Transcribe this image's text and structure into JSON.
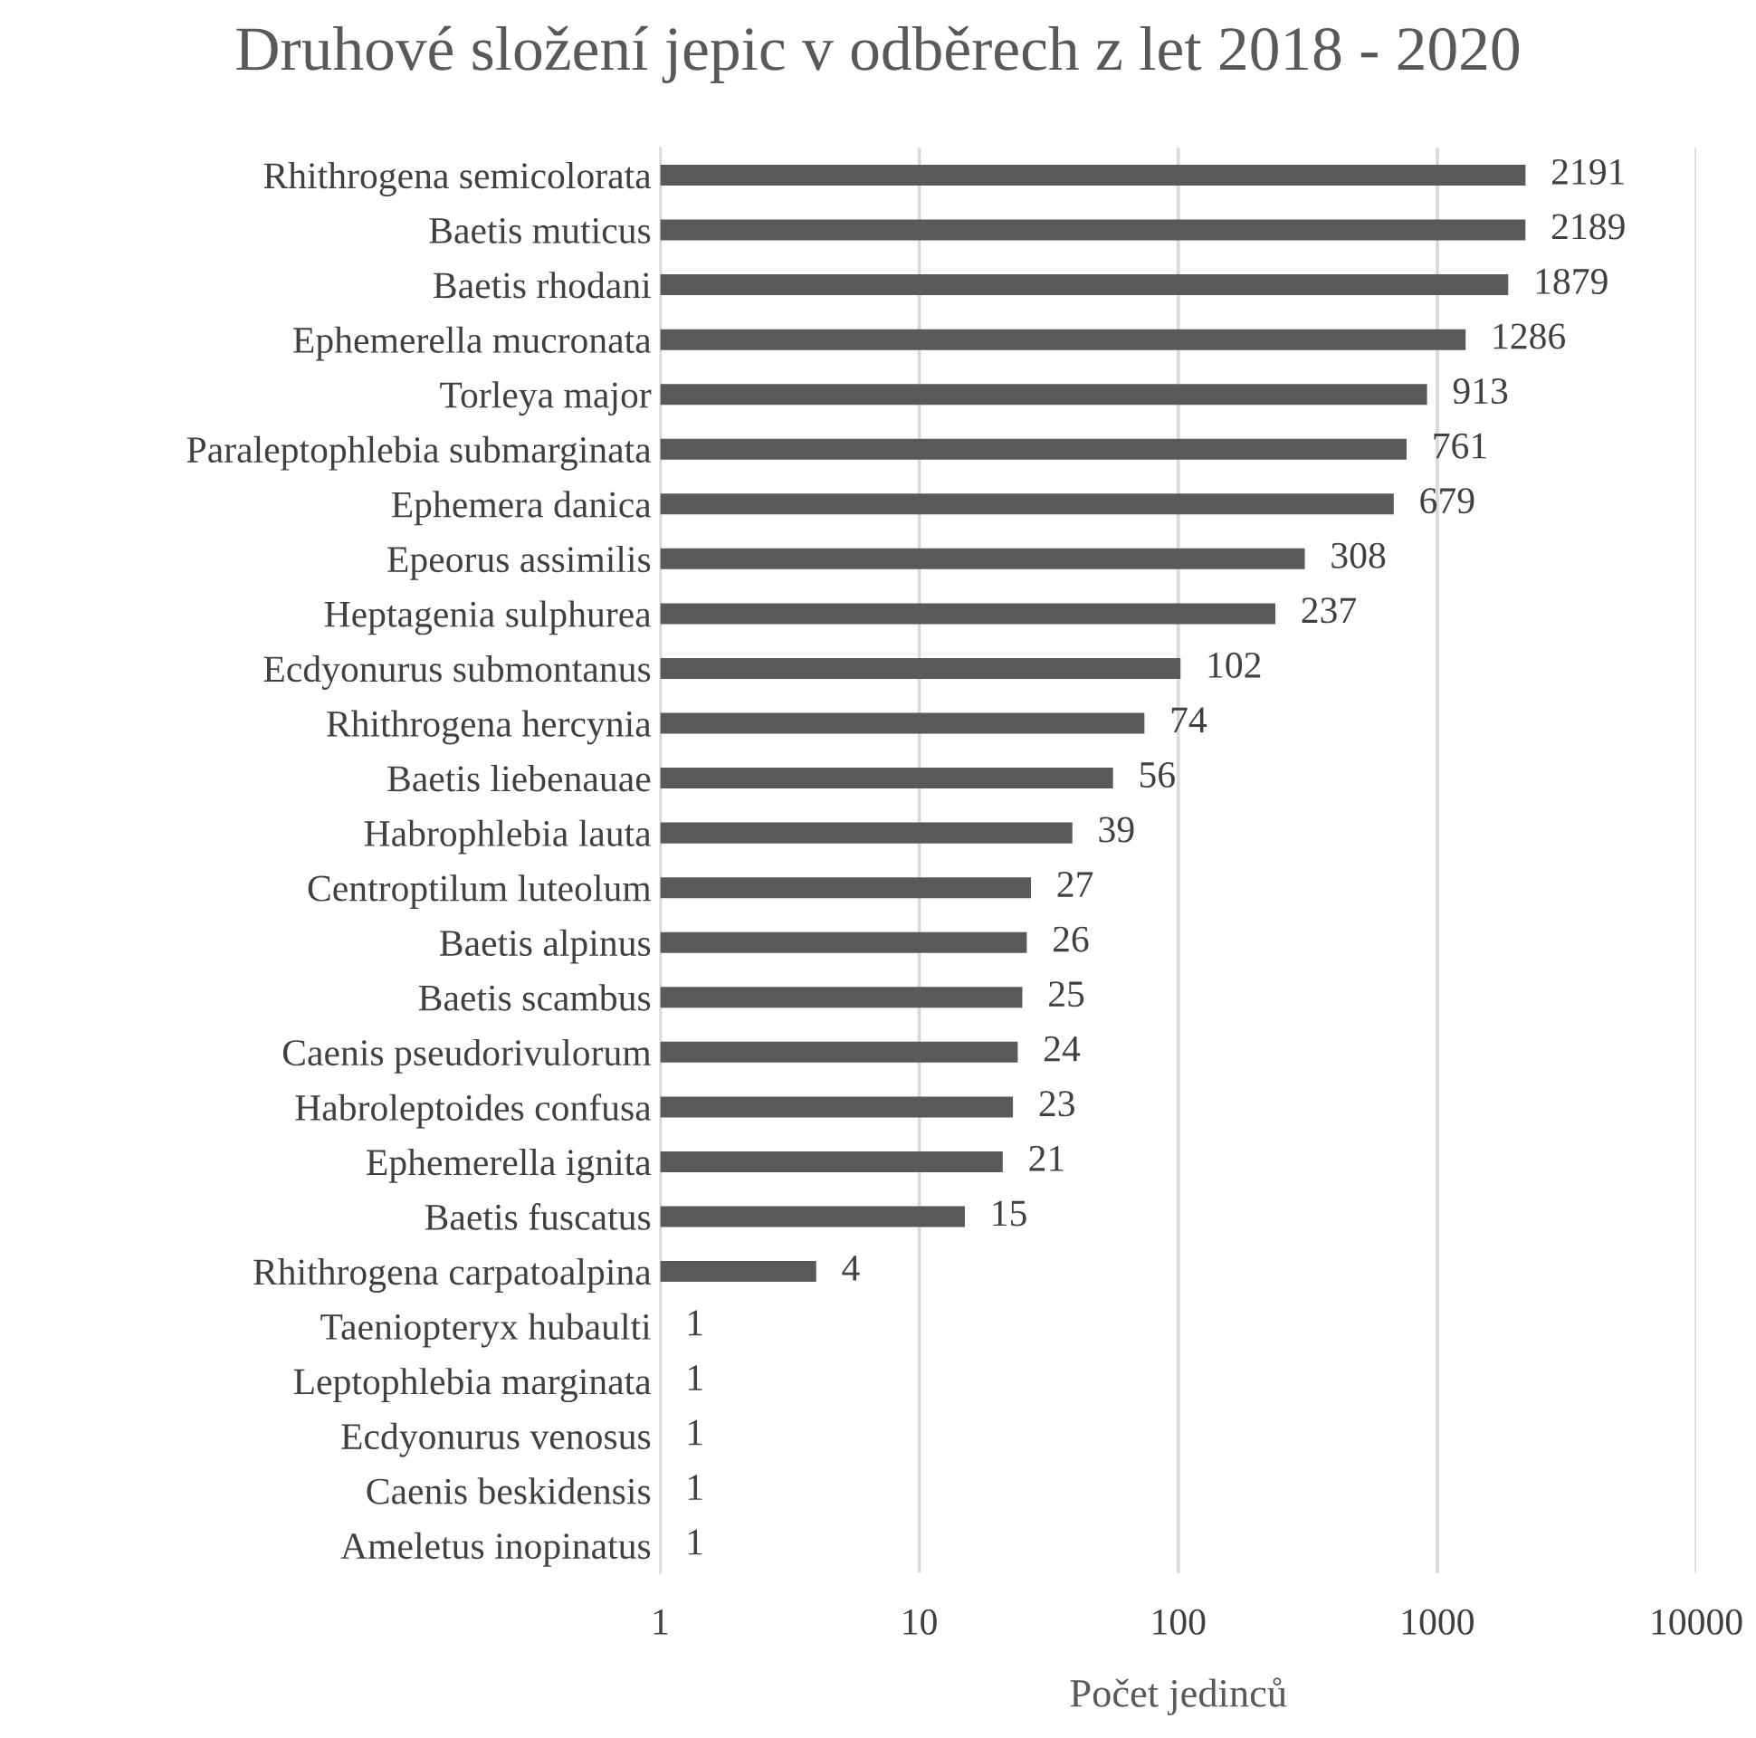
{
  "chart_data": {
    "type": "bar",
    "orientation": "horizontal",
    "title": "Druhové složení jepic v odběrech z let 2018 - 2020",
    "xlabel": "Počet jedinců",
    "categories": [
      "Rhithrogena semicolorata",
      "Baetis muticus",
      "Baetis rhodani",
      "Ephemerella mucronata",
      "Torleya major",
      "Paraleptophlebia submarginata",
      "Ephemera danica",
      "Epeorus assimilis",
      "Heptagenia sulphurea",
      "Ecdyonurus submontanus",
      "Rhithrogena hercynia",
      "Baetis liebenauae",
      "Habrophlebia lauta",
      "Centroptilum luteolum",
      "Baetis alpinus",
      "Baetis scambus",
      "Caenis pseudorivulorum",
      "Habroleptoides confusa",
      "Ephemerella ignita",
      "Baetis fuscatus",
      "Rhithrogena carpatoalpina",
      "Taeniopteryx hubaulti",
      "Leptophlebia marginata",
      "Ecdyonurus venosus",
      "Caenis beskidensis",
      "Ameletus inopinatus"
    ],
    "values": [
      2191,
      2189,
      1879,
      1286,
      913,
      761,
      679,
      308,
      237,
      102,
      74,
      56,
      39,
      27,
      26,
      25,
      24,
      23,
      21,
      15,
      4,
      1,
      1,
      1,
      1,
      1
    ],
    "color": "#595959",
    "log": "x",
    "xlim": [
      1,
      10000
    ],
    "xticks": [
      1,
      10,
      100,
      1000,
      10000
    ],
    "grid": "x",
    "data_labels": true,
    "legend": false
  }
}
